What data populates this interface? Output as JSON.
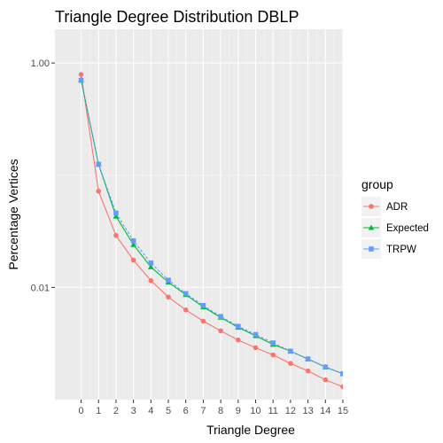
{
  "chart_data": {
    "type": "line",
    "title": "Triangle Degree Distribution DBLP",
    "xlabel": "Triangle Degree",
    "ylabel": "Percentage Vertices",
    "x": [
      0,
      1,
      2,
      3,
      4,
      5,
      6,
      7,
      8,
      9,
      10,
      11,
      12,
      13,
      14,
      15
    ],
    "x_ticks": [
      "0",
      "1",
      "2",
      "3",
      "4",
      "5",
      "6",
      "7",
      "8",
      "9",
      "10",
      "11",
      "12",
      "13",
      "14",
      "15"
    ],
    "xlim": [
      -1.5,
      15
    ],
    "y_scale": "log",
    "y_ticks": [
      1.0,
      0.01
    ],
    "y_tick_labels": [
      "1.00",
      "0.01"
    ],
    "ylim": [
      0.001,
      2.0
    ],
    "grid": true,
    "legend_title": "group",
    "legend_position": "right",
    "series": [
      {
        "name": "ADR",
        "color": "#F8766D",
        "marker": "circle",
        "values": [
          0.79,
          0.072,
          0.029,
          0.0175,
          0.0115,
          0.0082,
          0.0063,
          0.005,
          0.0041,
          0.0034,
          0.0029,
          0.0025,
          0.0021,
          0.0018,
          0.0015,
          0.0013
        ]
      },
      {
        "name": "Expected",
        "color": "#00BA38",
        "marker": "triangle",
        "values": [
          0.71,
          0.125,
          0.043,
          0.024,
          0.0152,
          0.0111,
          0.0086,
          0.0067,
          0.0054,
          0.0044,
          0.0037,
          0.0031,
          0.0027,
          0.0023,
          0.00195,
          0.0017
        ]
      },
      {
        "name": "TRPW",
        "color": "#619CFF",
        "marker": "square",
        "values": [
          0.7,
          0.125,
          0.046,
          0.026,
          0.0165,
          0.0116,
          0.0088,
          0.0069,
          0.0055,
          0.0045,
          0.0038,
          0.0032,
          0.0027,
          0.0023,
          0.00195,
          0.0017
        ]
      }
    ]
  }
}
